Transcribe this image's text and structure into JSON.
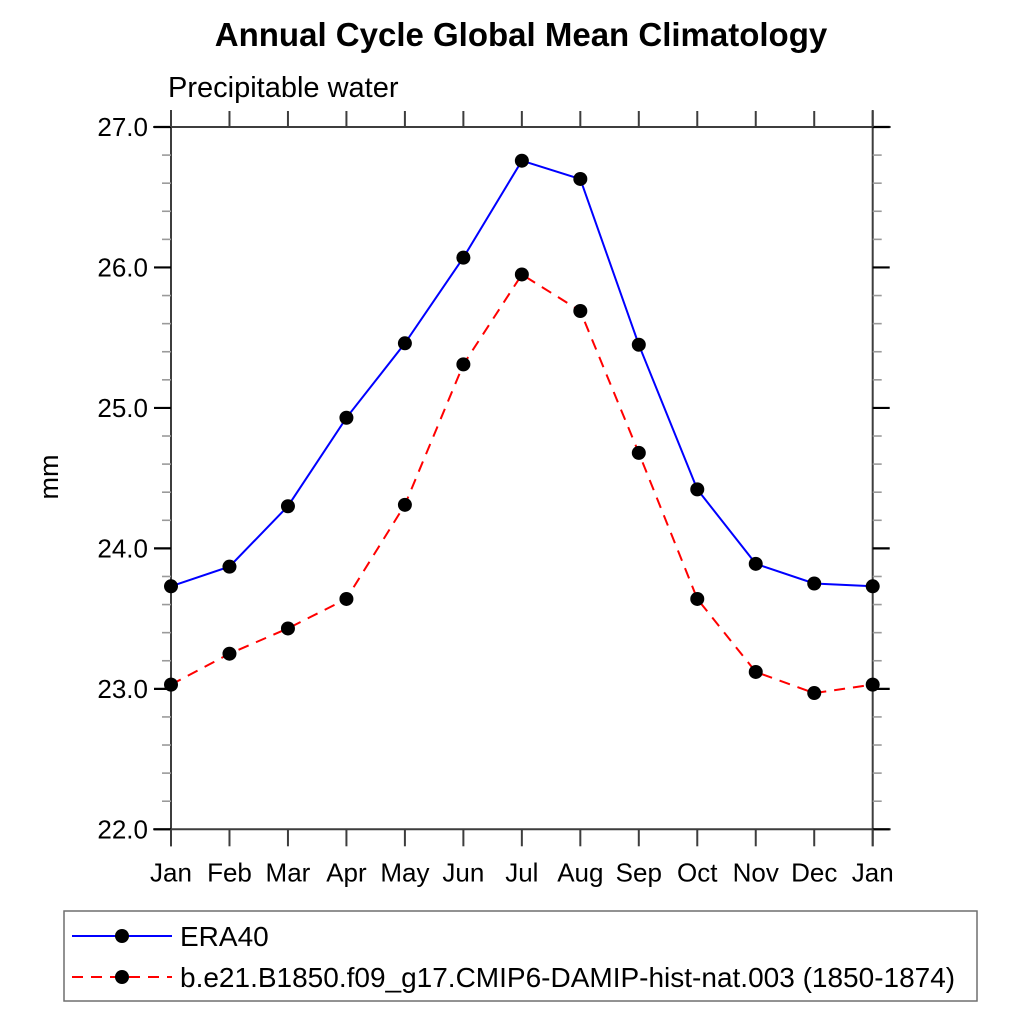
{
  "chart_data": {
    "type": "line",
    "title": "Annual Cycle Global Mean Climatology",
    "subtitle": "Precipitable water",
    "ylabel": "mm",
    "xlabel": "",
    "x_categories": [
      "Jan",
      "Feb",
      "Mar",
      "Apr",
      "May",
      "Jun",
      "Jul",
      "Aug",
      "Sep",
      "Oct",
      "Nov",
      "Dec",
      "Jan"
    ],
    "ylim": [
      22.0,
      27.0
    ],
    "ytick_major": [
      22.0,
      23.0,
      24.0,
      25.0,
      26.0,
      27.0
    ],
    "ytick_labels": [
      "22.0",
      "23.0",
      "24.0",
      "25.0",
      "26.0",
      "27.0"
    ],
    "ytick_minor_step": 0.2,
    "grid": false,
    "legend_position": "bottom",
    "series": [
      {
        "name": "ERA40",
        "line_style": "solid",
        "line_color": "#0000ff",
        "marker": "circle",
        "marker_color": "#000000",
        "values": [
          23.73,
          23.87,
          24.3,
          24.93,
          25.46,
          26.07,
          26.76,
          26.63,
          25.45,
          24.42,
          23.89,
          23.75,
          23.73
        ]
      },
      {
        "name": "b.e21.B1850.f09_g17.CMIP6-DAMIP-hist-nat.003 (1850-1874)",
        "line_style": "dashed",
        "line_color": "#ff0000",
        "marker": "circle",
        "marker_color": "#000000",
        "values": [
          23.03,
          23.25,
          23.43,
          23.64,
          24.31,
          25.31,
          25.95,
          25.69,
          24.68,
          23.64,
          23.12,
          22.97,
          23.03
        ]
      }
    ]
  },
  "colors": {
    "frame": "#3d3d3d",
    "major_tick": "#000000",
    "minor_tick": "#9a9a9a",
    "legend_border": "#6f6f6f"
  }
}
